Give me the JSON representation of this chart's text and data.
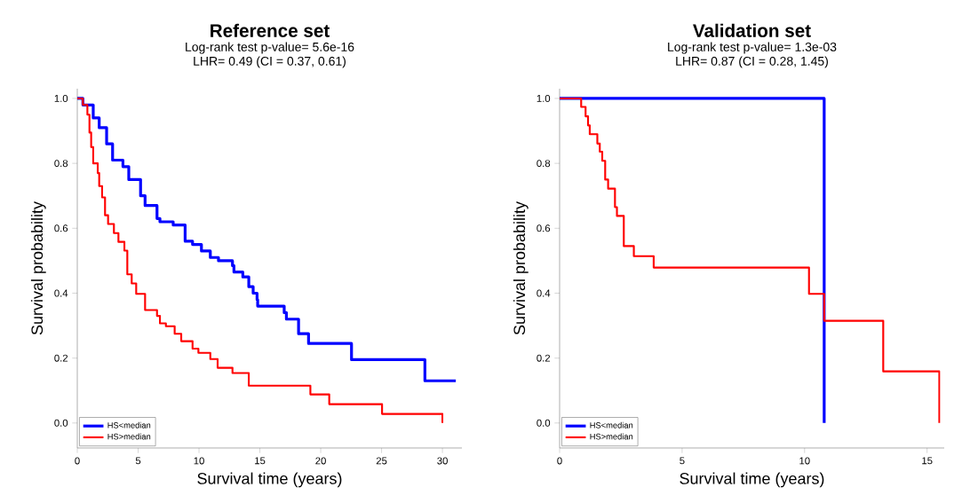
{
  "chart_data": [
    {
      "type": "step",
      "title": "Reference set",
      "subtitle": "Log-rank test p-value= 5.6e-16",
      "annotations": [
        "LHR= 0.49 (CI = 0.37, 0.61)"
      ],
      "xlabel": "Survival time (years)",
      "ylabel": "Survival probability",
      "xlim": [
        0,
        31.6
      ],
      "ylim": [
        -0.077,
        1.03
      ],
      "xticks": [
        0,
        5,
        10,
        15,
        20,
        25,
        30
      ],
      "yticks": [
        {
          "value": 0,
          "label": "0.0"
        },
        {
          "value": 0.2,
          "label": "0.2"
        },
        {
          "value": 0.4,
          "label": "0.4"
        },
        {
          "value": 0.6,
          "label": "0.6"
        },
        {
          "value": 0.8,
          "label": "0.8"
        },
        {
          "value": 1,
          "label": "1.0"
        }
      ],
      "legend": "bottom left",
      "series": [
        {
          "name": "HS<median",
          "color": "#0000ff",
          "x": [
            0,
            0.46,
            1.31,
            1.8,
            2.41,
            2.9,
            3.75,
            4.23,
            5.2,
            5.57,
            6.55,
            6.79,
            7.88,
            8.86,
            9.47,
            10.2,
            10.93,
            11.6,
            12.75,
            12.87,
            13.6,
            14.09,
            14.45,
            14.77,
            14.82,
            17.0,
            17.18,
            18.18,
            19.0,
            22.53,
            28.56,
            31.1
          ],
          "values": [
            1.0,
            0.98,
            0.94,
            0.91,
            0.86,
            0.81,
            0.79,
            0.75,
            0.7,
            0.67,
            0.63,
            0.62,
            0.61,
            0.56,
            0.55,
            0.53,
            0.51,
            0.5,
            0.485,
            0.465,
            0.45,
            0.42,
            0.4,
            0.38,
            0.36,
            0.34,
            0.32,
            0.275,
            0.245,
            0.195,
            0.13,
            0.13
          ]
        },
        {
          "name": "HS>median",
          "color": "#ff0000",
          "x": [
            0,
            0.46,
            0.83,
            1.0,
            1.14,
            1.31,
            1.68,
            1.8,
            2.04,
            2.28,
            2.53,
            3.01,
            3.38,
            3.87,
            4.11,
            4.47,
            4.84,
            5.57,
            6.55,
            6.79,
            7.28,
            8.0,
            8.54,
            9.47,
            9.95,
            10.93,
            11.53,
            12.75,
            14.09,
            19.15,
            20.7,
            25.04,
            30.0
          ],
          "values": [
            1.0,
            0.98,
            0.95,
            0.895,
            0.85,
            0.8,
            0.77,
            0.73,
            0.695,
            0.64,
            0.613,
            0.585,
            0.558,
            0.531,
            0.458,
            0.43,
            0.398,
            0.348,
            0.33,
            0.307,
            0.298,
            0.275,
            0.252,
            0.229,
            0.216,
            0.197,
            0.17,
            0.154,
            0.115,
            0.088,
            0.058,
            0.028,
            0
          ]
        }
      ]
    },
    {
      "type": "step",
      "title": "Validation set",
      "subtitle": "Log-rank test p-value= 1.3e-03",
      "annotations": [
        "LHR= 0.87 (CI = 0.28, 1.45)"
      ],
      "xlabel": "Survival time (years)",
      "ylabel": "Survival probability",
      "xlim": [
        0,
        15.7
      ],
      "ylim": [
        -0.077,
        1.03
      ],
      "xticks": [
        0,
        5,
        10,
        15
      ],
      "yticks": [
        {
          "value": 0,
          "label": "0.0"
        },
        {
          "value": 0.2,
          "label": "0.2"
        },
        {
          "value": 0.4,
          "label": "0.4"
        },
        {
          "value": 0.6,
          "label": "0.6"
        },
        {
          "value": 0.8,
          "label": "0.8"
        },
        {
          "value": 1,
          "label": "1.0"
        }
      ],
      "legend": "bottom left",
      "series": [
        {
          "name": "HS<median",
          "color": "#0000ff",
          "x": [
            0,
            10.8
          ],
          "values": [
            1.0,
            0
          ]
        },
        {
          "name": "HS>median",
          "color": "#ff0000",
          "x": [
            0,
            0.88,
            1.06,
            1.16,
            1.23,
            1.54,
            1.64,
            1.74,
            1.86,
            1.98,
            2.26,
            2.34,
            2.62,
            3.03,
            3.84,
            10.18,
            10.8,
            13.21,
            15.5
          ],
          "values": [
            1.0,
            0.974,
            0.945,
            0.917,
            0.89,
            0.861,
            0.836,
            0.808,
            0.75,
            0.722,
            0.665,
            0.638,
            0.545,
            0.514,
            0.479,
            0.398,
            0.315,
            0.159,
            0
          ]
        }
      ]
    }
  ]
}
